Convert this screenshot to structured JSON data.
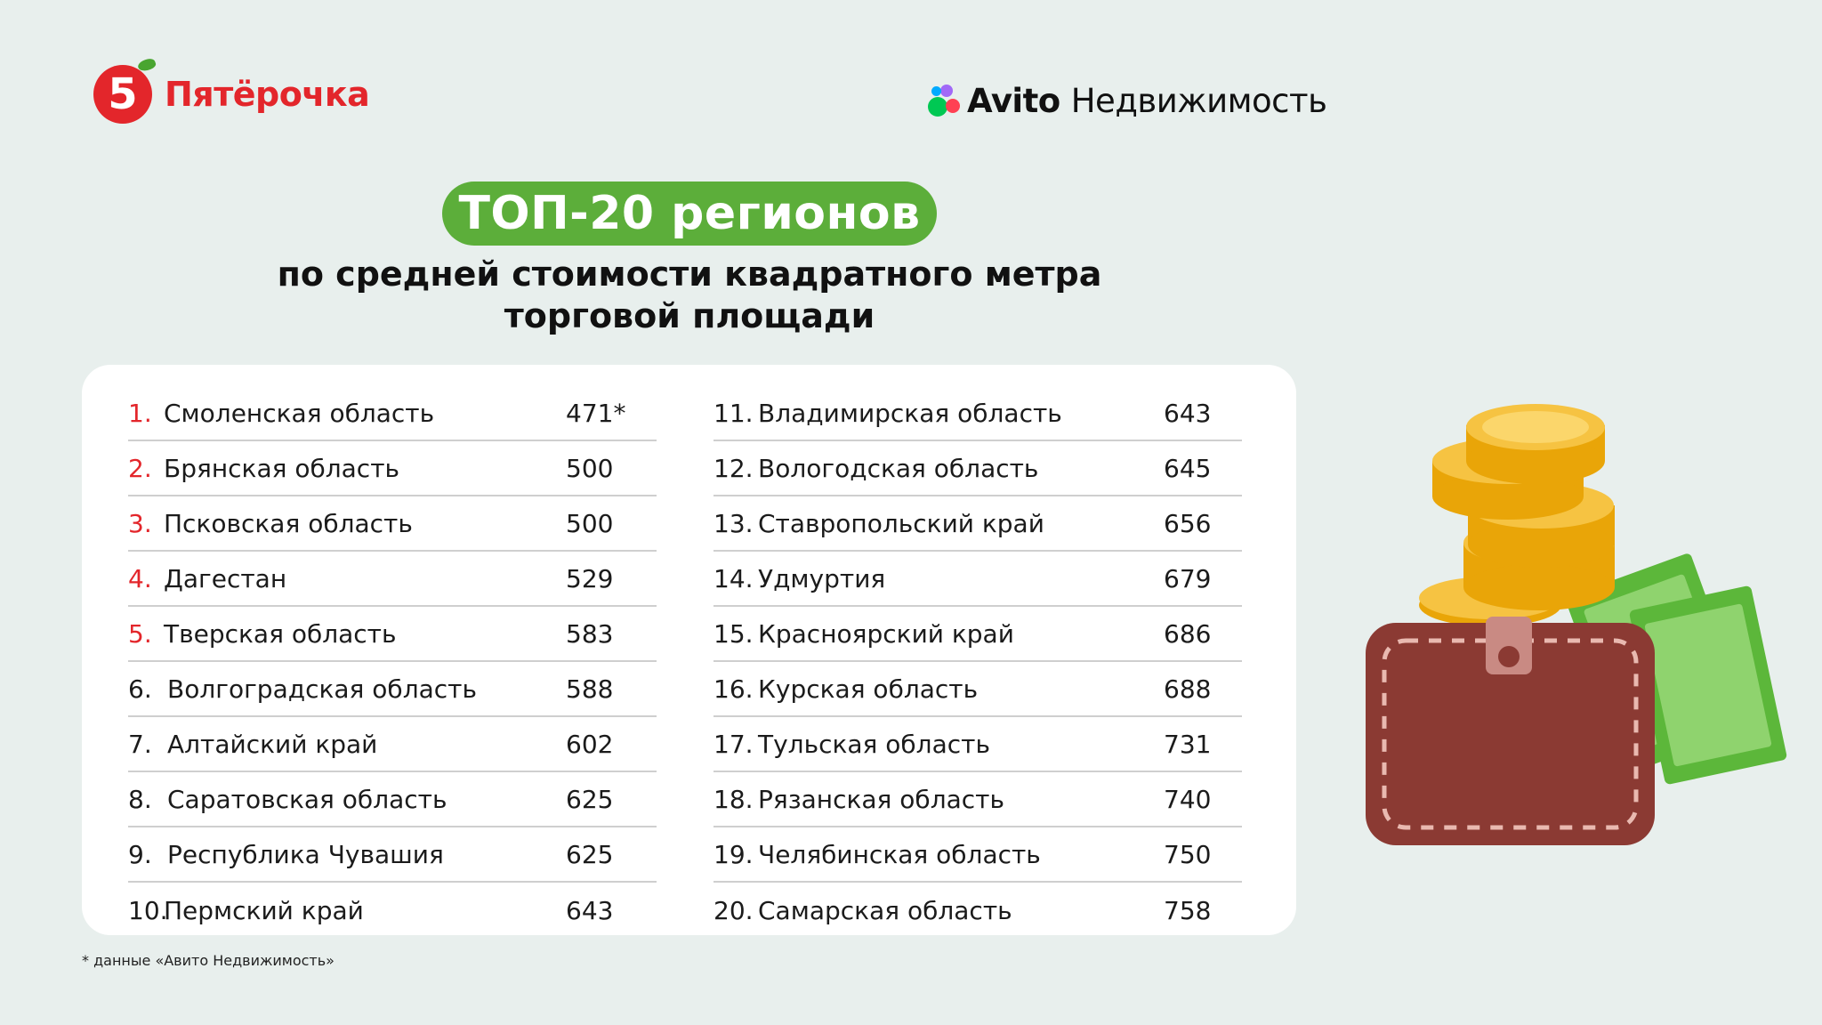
{
  "header": {
    "left_logo_digit": "5",
    "left_logo_text": "Пятёрочка",
    "right_logo_brand": "Avito",
    "right_logo_sub": "Недвижимость"
  },
  "title": "ТОП-20 регионов",
  "subtitle_lines": [
    "по средней стоимости квадратного метра",
    "торговой площади"
  ],
  "table": {
    "left": [
      {
        "num": "1.",
        "name": "Смоленская область",
        "value": "471*"
      },
      {
        "num": "2.",
        "name": "Брянская область",
        "value": "500"
      },
      {
        "num": "3.",
        "name": "Псковская область",
        "value": "500"
      },
      {
        "num": "4.",
        "name": "Дагестан",
        "value": "529"
      },
      {
        "num": "5.",
        "name": "Тверская область",
        "value": "583"
      },
      {
        "num": "6.",
        "name": "Волгоградская область",
        "value": "588"
      },
      {
        "num": "7.",
        "name": "Алтайский край",
        "value": "602"
      },
      {
        "num": "8.",
        "name": "Саратовская область",
        "value": "625"
      },
      {
        "num": "9.",
        "name": "Республика Чувашия",
        "value": "625"
      },
      {
        "num": "10.",
        "name": "Пермский край",
        "value": "643"
      }
    ],
    "right": [
      {
        "num": "11.",
        "name": "Владимирская область",
        "value": "643"
      },
      {
        "num": "12.",
        "name": "Вологодская область",
        "value": "645"
      },
      {
        "num": "13.",
        "name": "Ставропольский край",
        "value": "656"
      },
      {
        "num": "14.",
        "name": "Удмуртия",
        "value": "679"
      },
      {
        "num": "15.",
        "name": "Красноярский край",
        "value": "686"
      },
      {
        "num": "16.",
        "name": "Курская область",
        "value": "688"
      },
      {
        "num": "17.",
        "name": "Тульская область",
        "value": "731"
      },
      {
        "num": "18.",
        "name": "Рязанская область",
        "value": "740"
      },
      {
        "num": "19.",
        "name": "Челябинская область",
        "value": "750"
      },
      {
        "num": "20.",
        "name": "Самарская область",
        "value": "758"
      }
    ]
  },
  "footnote": "* данные «Авито Недвижимость»",
  "colors": {
    "background": "#e8efed",
    "accent_green": "#5cae3a",
    "brand_red": "#e3262b",
    "card": "#ffffff"
  },
  "illustration": {
    "icons": [
      "coin-stack-icon",
      "wallet-icon",
      "banknotes-icon"
    ]
  }
}
